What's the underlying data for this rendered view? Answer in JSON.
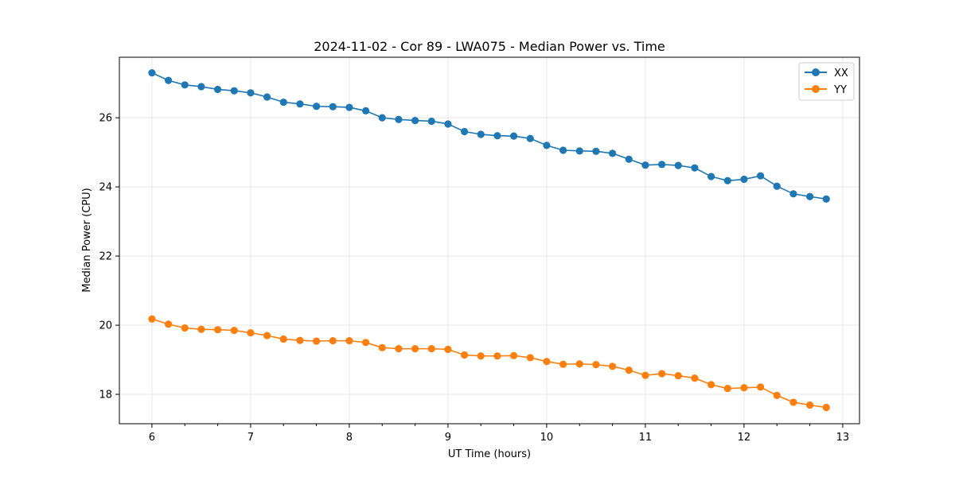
{
  "chart_data": {
    "type": "line",
    "title": "2024-11-02 - Cor 89 - LWA075 - Median Power vs. Time",
    "xlabel": "UT Time (hours)",
    "ylabel": "Median Power (CPU)",
    "xlim": [
      5.67,
      13.17
    ],
    "ylim": [
      17.15,
      27.75
    ],
    "xticks": [
      6,
      7,
      8,
      9,
      10,
      11,
      12,
      13
    ],
    "yticks": [
      18,
      20,
      22,
      24,
      26
    ],
    "grid": true,
    "legend_position": "top-right",
    "x": [
      6.0,
      6.1667,
      6.3333,
      6.5,
      6.6667,
      6.8333,
      7.0,
      7.1667,
      7.3333,
      7.5,
      7.6667,
      7.8333,
      8.0,
      8.1667,
      8.3333,
      8.5,
      8.6667,
      8.8333,
      9.0,
      9.1667,
      9.3333,
      9.5,
      9.6667,
      9.8333,
      10.0,
      10.1667,
      10.3333,
      10.5,
      10.6667,
      10.8333,
      11.0,
      11.1667,
      11.3333,
      11.5,
      11.6667,
      11.8333,
      12.0,
      12.1667,
      12.3333,
      12.5,
      12.6667,
      12.8333
    ],
    "series": [
      {
        "name": "XX",
        "color": "#1f77b4",
        "values": [
          27.3,
          27.08,
          26.95,
          26.9,
          26.82,
          26.78,
          26.72,
          26.6,
          26.45,
          26.4,
          26.33,
          26.32,
          26.3,
          26.2,
          26.0,
          25.95,
          25.92,
          25.9,
          25.82,
          25.6,
          25.52,
          25.48,
          25.47,
          25.4,
          25.2,
          25.06,
          25.04,
          25.03,
          24.97,
          24.8,
          24.63,
          24.65,
          24.62,
          24.55,
          24.3,
          24.18,
          24.22,
          24.32,
          24.02,
          23.8,
          23.72,
          23.65
        ]
      },
      {
        "name": "YY",
        "color": "#ff7f0e",
        "values": [
          20.18,
          20.03,
          19.92,
          19.88,
          19.87,
          19.85,
          19.78,
          19.7,
          19.6,
          19.56,
          19.54,
          19.55,
          19.55,
          19.5,
          19.35,
          19.32,
          19.32,
          19.32,
          19.3,
          19.14,
          19.11,
          19.11,
          19.12,
          19.06,
          18.95,
          18.87,
          18.88,
          18.86,
          18.81,
          18.7,
          18.55,
          18.6,
          18.54,
          18.47,
          18.28,
          18.17,
          18.19,
          18.21,
          17.97,
          17.77,
          17.69,
          17.62
        ]
      }
    ]
  }
}
